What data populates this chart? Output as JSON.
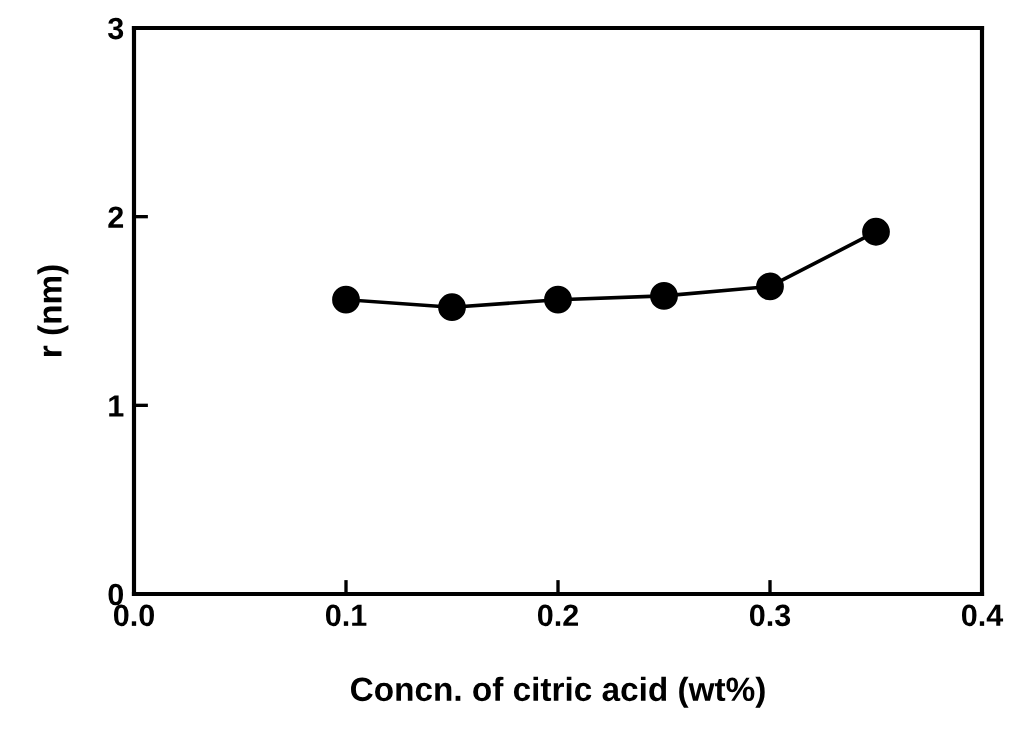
{
  "chart_data": {
    "type": "line",
    "xlabel": "Concn. of citric acid (wt%)",
    "ylabel": "r (nm)",
    "x": [
      0.1,
      0.15,
      0.2,
      0.25,
      0.3,
      0.35
    ],
    "series": [
      {
        "color": "#000000",
        "values": [
          1.56,
          1.52,
          1.56,
          1.58,
          1.63,
          1.92
        ]
      }
    ],
    "xlim": [
      0.0,
      0.4
    ],
    "xticks": [
      "0.0",
      0.1,
      0.2,
      0.3,
      0.4
    ],
    "ylim": [
      0,
      3
    ],
    "yticks": [
      0,
      1,
      2,
      3
    ],
    "marker": "circle",
    "line_style": "solid",
    "grid": false,
    "legend": false
  }
}
